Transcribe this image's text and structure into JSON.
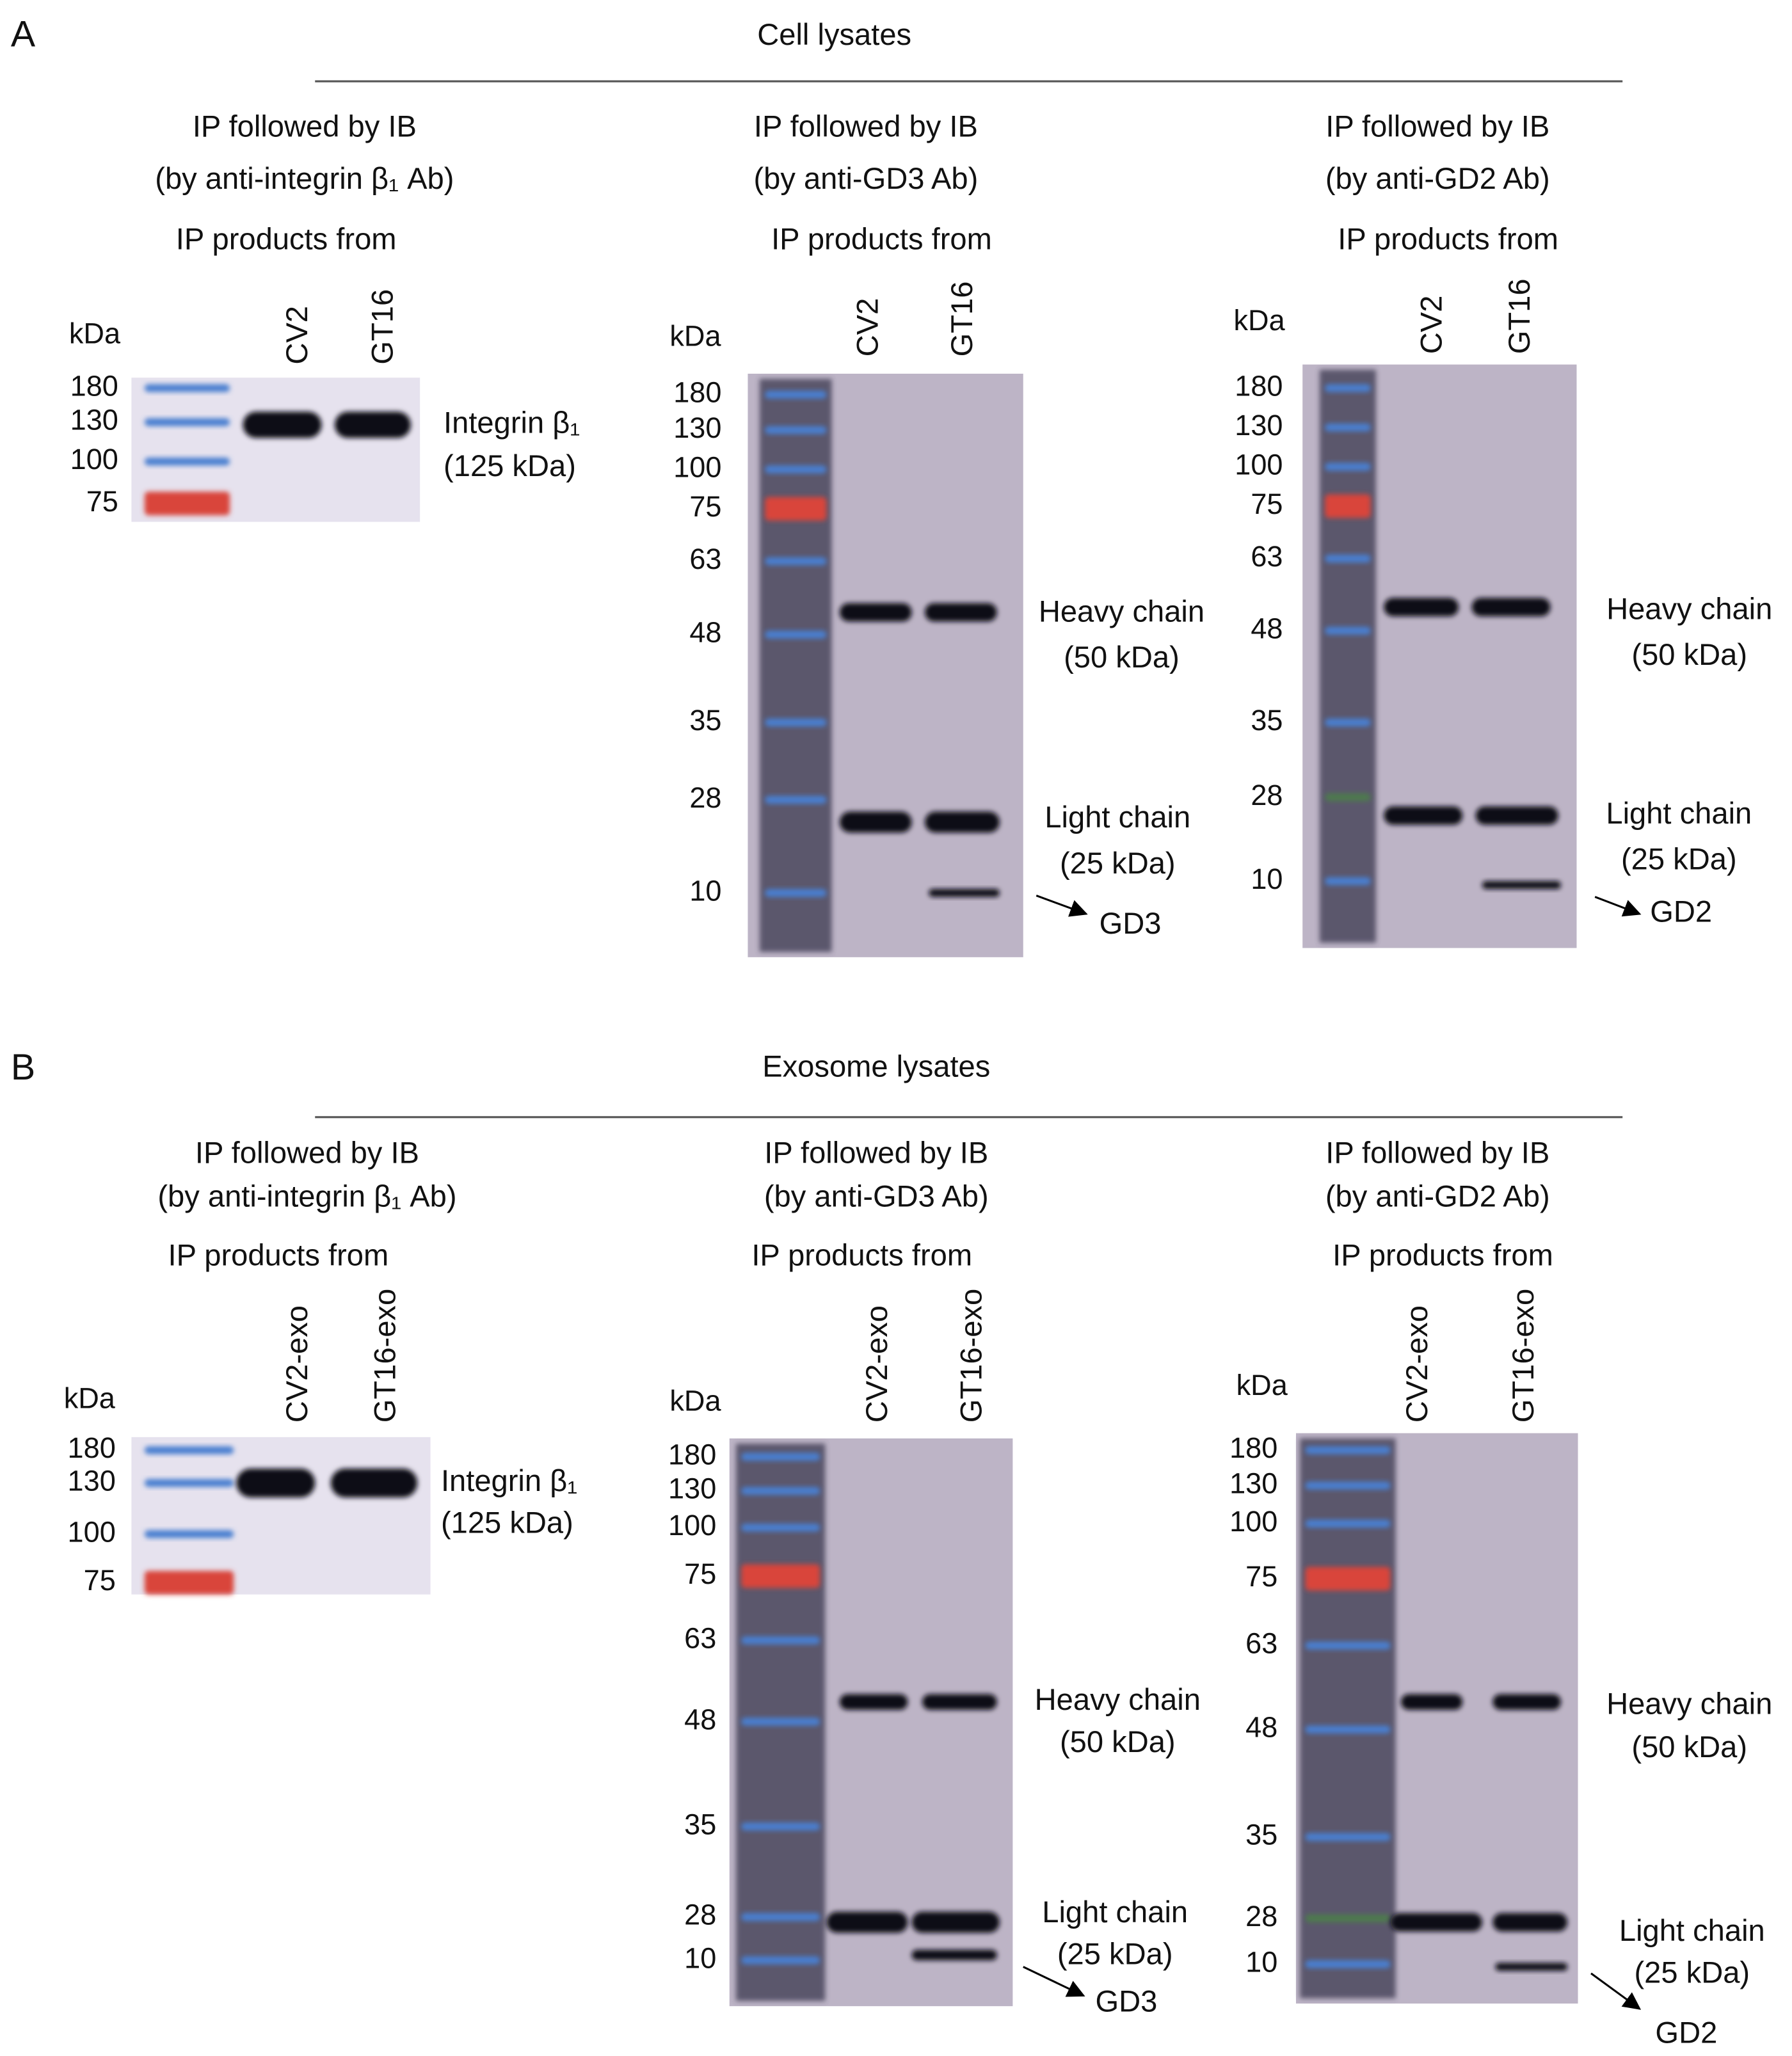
{
  "panels": [
    {
      "letter": "A",
      "title": "Cell lysates",
      "blots": [
        {
          "heading": [
            "IP followed by IB",
            "(by anti-integrin β₁ Ab)"
          ],
          "subheading": "IP products from",
          "unit": "kDa",
          "lanes": [
            "CV2",
            "GT16"
          ],
          "markers": [
            180,
            130,
            100,
            75
          ],
          "labels": [
            [
              "Integrin β₁",
              "(125 kDa)"
            ]
          ]
        },
        {
          "heading": [
            "IP followed by IB",
            "(by anti-GD3 Ab)"
          ],
          "subheading": "IP products from",
          "unit": "kDa",
          "lanes": [
            "CV2",
            "GT16"
          ],
          "markers": [
            180,
            130,
            100,
            75,
            63,
            48,
            35,
            28,
            10
          ],
          "labels": [
            [
              "Heavy chain",
              "(50 kDa)"
            ],
            [
              "Light chain",
              "(25 kDa)"
            ],
            [
              "GD3"
            ]
          ]
        },
        {
          "heading": [
            "IP followed by IB",
            "(by anti-GD2 Ab)"
          ],
          "subheading": "IP products from",
          "unit": "kDa",
          "lanes": [
            "CV2",
            "GT16"
          ],
          "markers": [
            180,
            130,
            100,
            75,
            63,
            48,
            35,
            28,
            10
          ],
          "labels": [
            [
              "Heavy chain",
              "(50 kDa)"
            ],
            [
              "Light chain",
              "(25 kDa)"
            ],
            [
              "GD2"
            ]
          ]
        }
      ]
    },
    {
      "letter": "B",
      "title": "Exosome lysates",
      "blots": [
        {
          "heading": [
            "IP followed by IB",
            "(by anti-integrin β₁ Ab)"
          ],
          "subheading": "IP products from",
          "unit": "kDa",
          "lanes": [
            "CV2-exo",
            "GT16-exo"
          ],
          "markers": [
            180,
            130,
            100,
            75
          ],
          "labels": [
            [
              "Integrin β₁",
              "(125 kDa)"
            ]
          ]
        },
        {
          "heading": [
            "IP followed by IB",
            "(by anti-GD3 Ab)"
          ],
          "subheading": "IP products from",
          "unit": "kDa",
          "lanes": [
            "CV2-exo",
            "GT16-exo"
          ],
          "markers": [
            180,
            130,
            100,
            75,
            63,
            48,
            35,
            28,
            10
          ],
          "labels": [
            [
              "Heavy chain",
              "(50 kDa)"
            ],
            [
              "Light chain",
              "(25 kDa)"
            ],
            [
              "GD3"
            ]
          ]
        },
        {
          "heading": [
            "IP followed by IB",
            "(by anti-GD2 Ab)"
          ],
          "subheading": "IP products from",
          "unit": "kDa",
          "lanes": [
            "CV2-exo",
            "GT16-exo"
          ],
          "markers": [
            180,
            130,
            100,
            75,
            63,
            48,
            35,
            28,
            10
          ],
          "labels": [
            [
              "Heavy chain",
              "(50 kDa)"
            ],
            [
              "Light chain",
              "(25 kDa)"
            ],
            [
              "GD2"
            ]
          ]
        }
      ]
    }
  ]
}
